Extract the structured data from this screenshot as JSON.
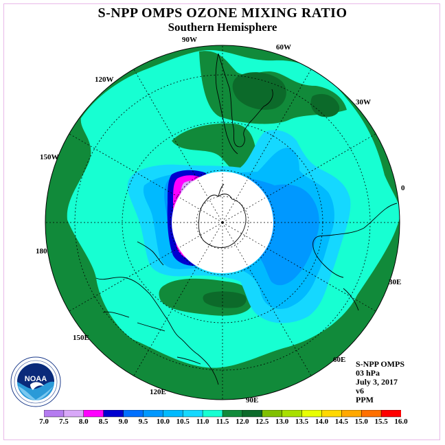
{
  "title": "S-NPP OMPS OZONE MIXING RATIO",
  "subtitle": "Southern Hemisphere",
  "longitude_labels": [
    "90W",
    "60W",
    "30W",
    "0",
    "30E",
    "60E",
    "90E",
    "120E",
    "150E",
    "180",
    "150W",
    "120W"
  ],
  "info": {
    "satellite": "S-NPP OMPS",
    "level": "03 hPa",
    "date": "July 3, 2017",
    "version": "v6",
    "units": "PPM"
  },
  "colorbar": {
    "ticks": [
      "7.0",
      "7.5",
      "8.0",
      "8.5",
      "9.0",
      "9.5",
      "10.0",
      "10.5",
      "11.0",
      "11.5",
      "12.0",
      "12.5",
      "13.0",
      "13.5",
      "14.0",
      "14.5",
      "15.0",
      "15.5",
      "16.0"
    ],
    "colors": [
      "#b57cf0",
      "#d8a8f8",
      "#ff00ff",
      "#0000d0",
      "#0070ff",
      "#0098ff",
      "#00baff",
      "#15d8ff",
      "#17ffd2",
      "#118a3a",
      "#0c6a2a",
      "#80c000",
      "#a8e000",
      "#e8ff00",
      "#ffd800",
      "#ffa800",
      "#ff7000",
      "#ff0000",
      "#8a5a3a"
    ]
  },
  "logo": {
    "text": "NOAA",
    "ring_text": "NATIONAL OCEANIC AND ATMOSPHERIC ADMINISTRATION · U.S. DEPARTMENT OF COMMERCE"
  }
}
